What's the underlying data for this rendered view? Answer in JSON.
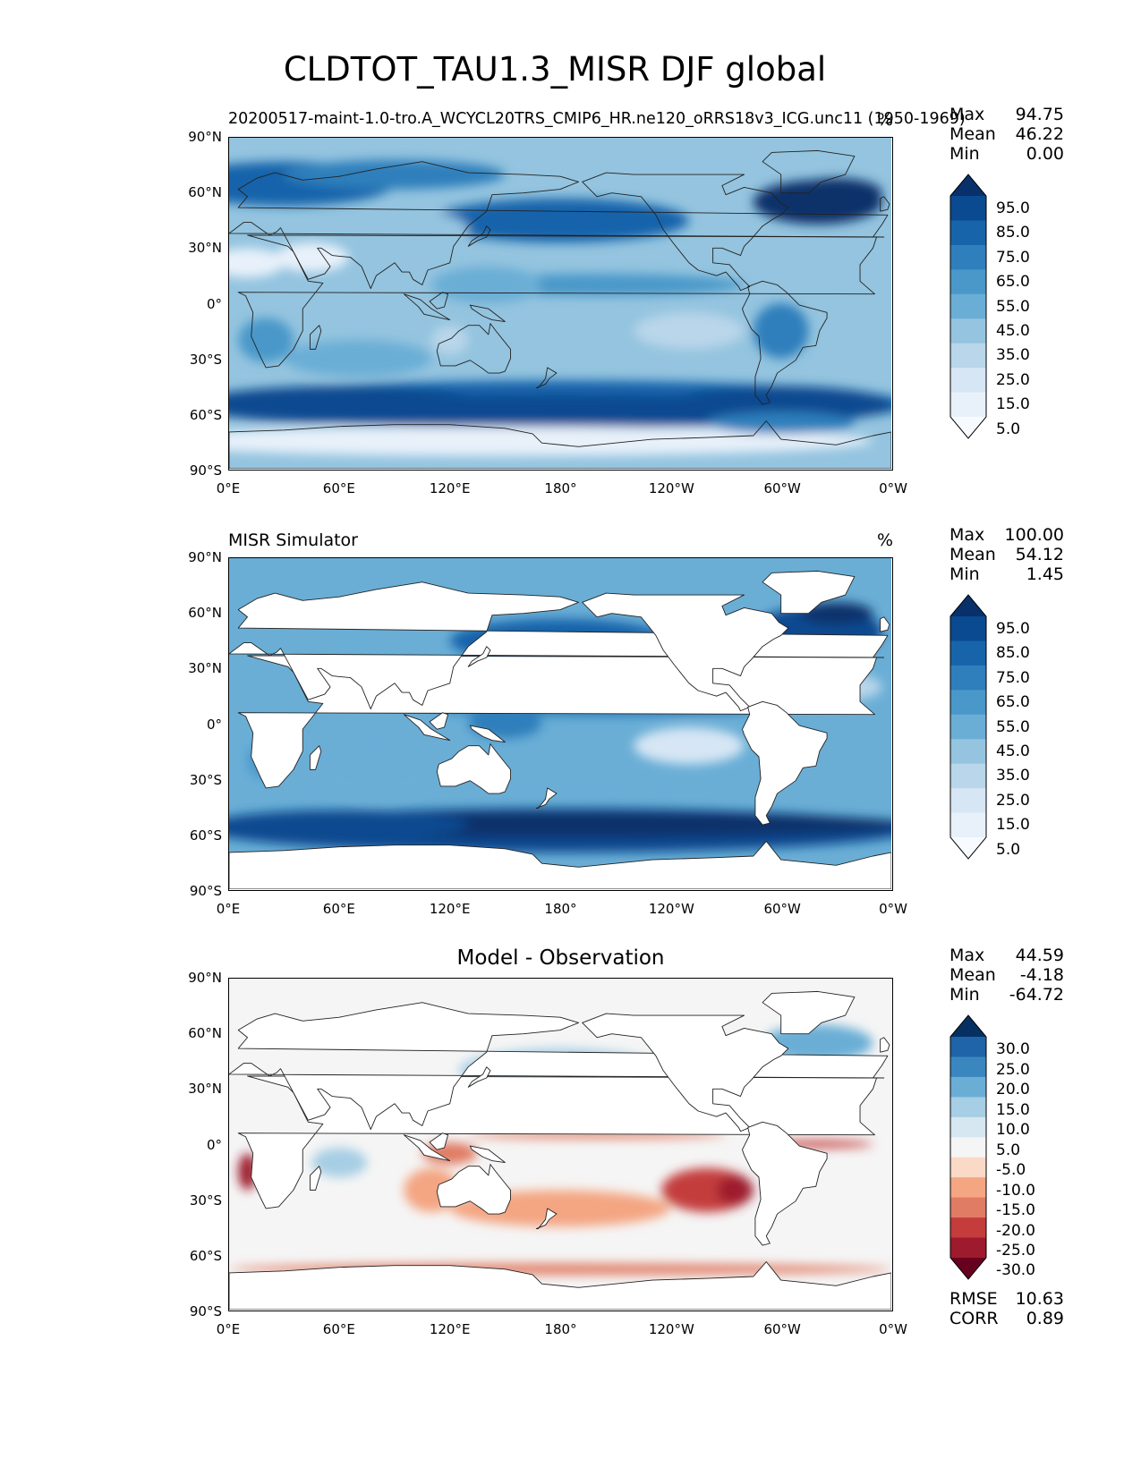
{
  "title": "CLDTOT_TAU1.3_MISR DJF global",
  "x_ticks": [
    "0°E",
    "60°E",
    "120°E",
    "180°",
    "120°W",
    "60°W",
    "0°W"
  ],
  "y_ticks": [
    "90°N",
    "60°N",
    "30°N",
    "0°",
    "30°S",
    "60°S",
    "90°S"
  ],
  "panels": [
    {
      "left_title": "20200517-maint-1.0-tro.A_WCYCL20TRS_CMIP6_HR.ne120_oRRS18v3_ICG.unc11 (1950-1969)",
      "center_title": "",
      "units": "%",
      "stats": [
        {
          "label": "Max",
          "value": "94.75"
        },
        {
          "label": "Mean",
          "value": "46.22"
        },
        {
          "label": "Min",
          "value": "0.00"
        }
      ],
      "colorbar": {
        "labels": [
          "95.0",
          "85.0",
          "75.0",
          "65.0",
          "55.0",
          "45.0",
          "35.0",
          "25.0",
          "15.0",
          "5.0"
        ],
        "colors": [
          "#08306b",
          "#0a4a90",
          "#1764ab",
          "#2f7fbc",
          "#4a98c9",
          "#6aaed6",
          "#94c4df",
          "#b9d6ea",
          "#d6e6f4",
          "#e8f1fa",
          "#f7fbff"
        ]
      }
    },
    {
      "left_title": "MISR Simulator",
      "center_title": "",
      "units": "%",
      "stats": [
        {
          "label": "Max",
          "value": "100.00"
        },
        {
          "label": "Mean",
          "value": "54.12"
        },
        {
          "label": "Min",
          "value": "1.45"
        }
      ],
      "colorbar": {
        "labels": [
          "95.0",
          "85.0",
          "75.0",
          "65.0",
          "55.0",
          "45.0",
          "35.0",
          "25.0",
          "15.0",
          "5.0"
        ],
        "colors": [
          "#08306b",
          "#0a4a90",
          "#1764ab",
          "#2f7fbc",
          "#4a98c9",
          "#6aaed6",
          "#94c4df",
          "#b9d6ea",
          "#d6e6f4",
          "#e8f1fa",
          "#f7fbff"
        ]
      }
    },
    {
      "left_title": "",
      "center_title": "Model - Observation",
      "units": "",
      "stats": [
        {
          "label": "Max",
          "value": "44.59"
        },
        {
          "label": "Mean",
          "value": "-4.18"
        },
        {
          "label": "Min",
          "value": "-64.72"
        }
      ],
      "colorbar": {
        "labels": [
          "30.0",
          "25.0",
          "20.0",
          "15.0",
          "10.0",
          "5.0",
          "-5.0",
          "-10.0",
          "-15.0",
          "-20.0",
          "-25.0",
          "-30.0"
        ],
        "colors": [
          "#053061",
          "#1f63a8",
          "#3a87c0",
          "#6aaed6",
          "#a6cee4",
          "#d6e7f1",
          "#f5f5f5",
          "#fbd9c7",
          "#f4a582",
          "#e07b64",
          "#c43c3c",
          "#9e1a2d",
          "#67001f"
        ]
      },
      "rmse": {
        "label": "RMSE",
        "value": "10.63"
      },
      "corr": {
        "label": "CORR",
        "value": "0.89"
      }
    }
  ]
}
